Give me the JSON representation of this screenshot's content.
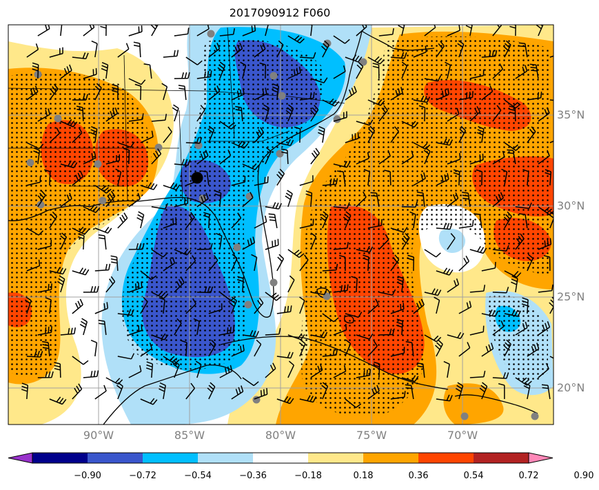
{
  "title": "2017090912 F060",
  "latitude_labels": [
    "35°N",
    "30°N",
    "25°N",
    "20°N"
  ],
  "longitude_labels": [
    "90°W",
    "85°W",
    "80°W",
    "75°W",
    "70°W"
  ],
  "colorbar": {
    "tick_labels": [
      "−0.90",
      "−0.72",
      "−0.54",
      "−0.36",
      "−0.18",
      "0.18",
      "0.36",
      "0.54",
      "0.72",
      "0.90"
    ],
    "colors": [
      "#9932cc",
      "#00008b",
      "#3a56cc",
      "#00bfff",
      "#b0e0f8",
      "#ffffff",
      "#ffe88a",
      "#ffa500",
      "#ff4500",
      "#b22222",
      "#ff88b8"
    ]
  },
  "chart_data": {
    "type": "heatmap",
    "title": "2017090912 F060",
    "xlabel": "",
    "ylabel": "",
    "lon_range": [
      -95,
      -65
    ],
    "lat_range": [
      18,
      40
    ],
    "lon_ticks": [
      -90,
      -85,
      -80,
      -75,
      -70
    ],
    "lat_ticks": [
      35,
      30,
      25,
      20
    ],
    "grid": true,
    "contour_levels": [
      -0.9,
      -0.72,
      -0.54,
      -0.36,
      -0.18,
      0.18,
      0.36,
      0.54,
      0.72,
      0.9
    ],
    "legend": "colorbar-bottom",
    "storm_center": {
      "lon": -85.1,
      "lat": 31.6
    }
  },
  "colors": {
    "grid": "#a0a0a0",
    "coast": "#000000",
    "stations": "#808080",
    "storm": "#000000"
  }
}
